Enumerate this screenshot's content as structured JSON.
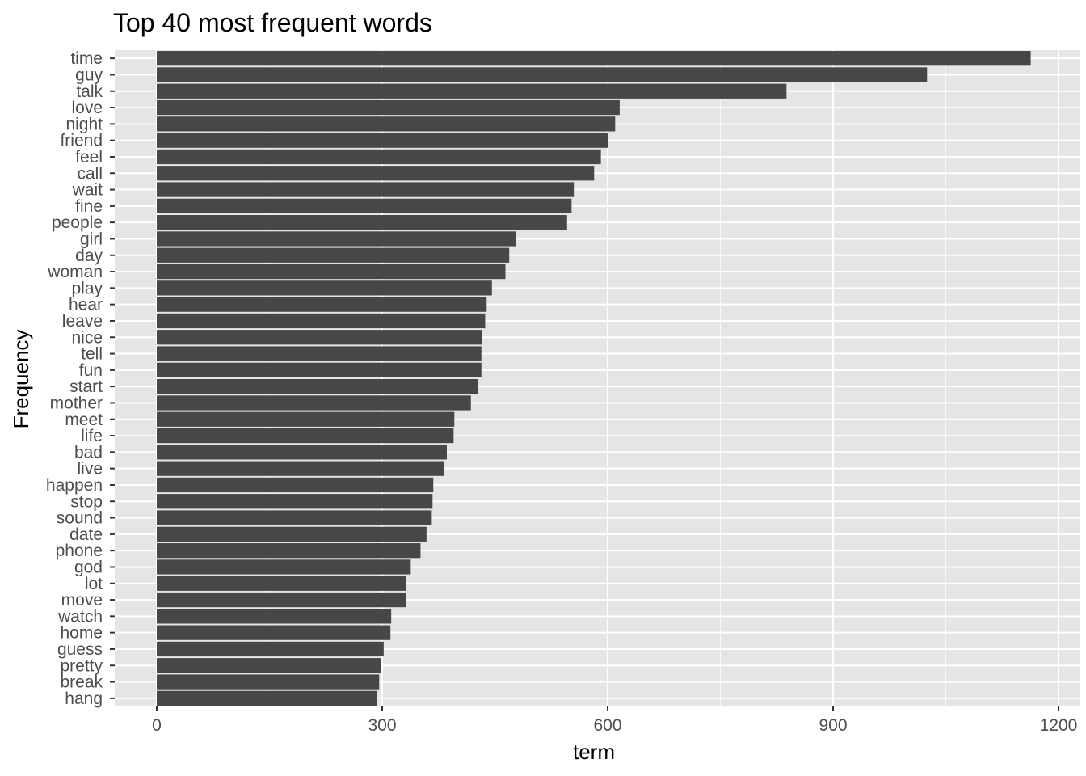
{
  "chart_data": {
    "type": "bar",
    "orientation": "horizontal",
    "title": "Top 40 most frequent words",
    "xlabel": "term",
    "ylabel": "Frequency",
    "xlim": [
      0,
      1200
    ],
    "xticks": [
      "0",
      "300",
      "600",
      "900",
      "1200"
    ],
    "grid": true,
    "legend": "none",
    "colors": {
      "bar": "#474747",
      "panel": "#e5e5e5",
      "grid": "#ffffff"
    },
    "categories": [
      "time",
      "guy",
      "talk",
      "love",
      "night",
      "friend",
      "feel",
      "call",
      "wait",
      "fine",
      "people",
      "girl",
      "day",
      "woman",
      "play",
      "hear",
      "leave",
      "nice",
      "tell",
      "fun",
      "start",
      "mother",
      "meet",
      "life",
      "bad",
      "live",
      "happen",
      "stop",
      "sound",
      "date",
      "phone",
      "god",
      "lot",
      "move",
      "watch",
      "home",
      "guess",
      "pretty",
      "break",
      "hang"
    ],
    "values": [
      1163,
      1025,
      838,
      616,
      610,
      600,
      591,
      582,
      555,
      552,
      546,
      478,
      469,
      464,
      446,
      439,
      437,
      433,
      432,
      432,
      428,
      418,
      396,
      395,
      386,
      382,
      368,
      367,
      366,
      359,
      351,
      338,
      332,
      332,
      312,
      311,
      302,
      298,
      296,
      293
    ]
  }
}
